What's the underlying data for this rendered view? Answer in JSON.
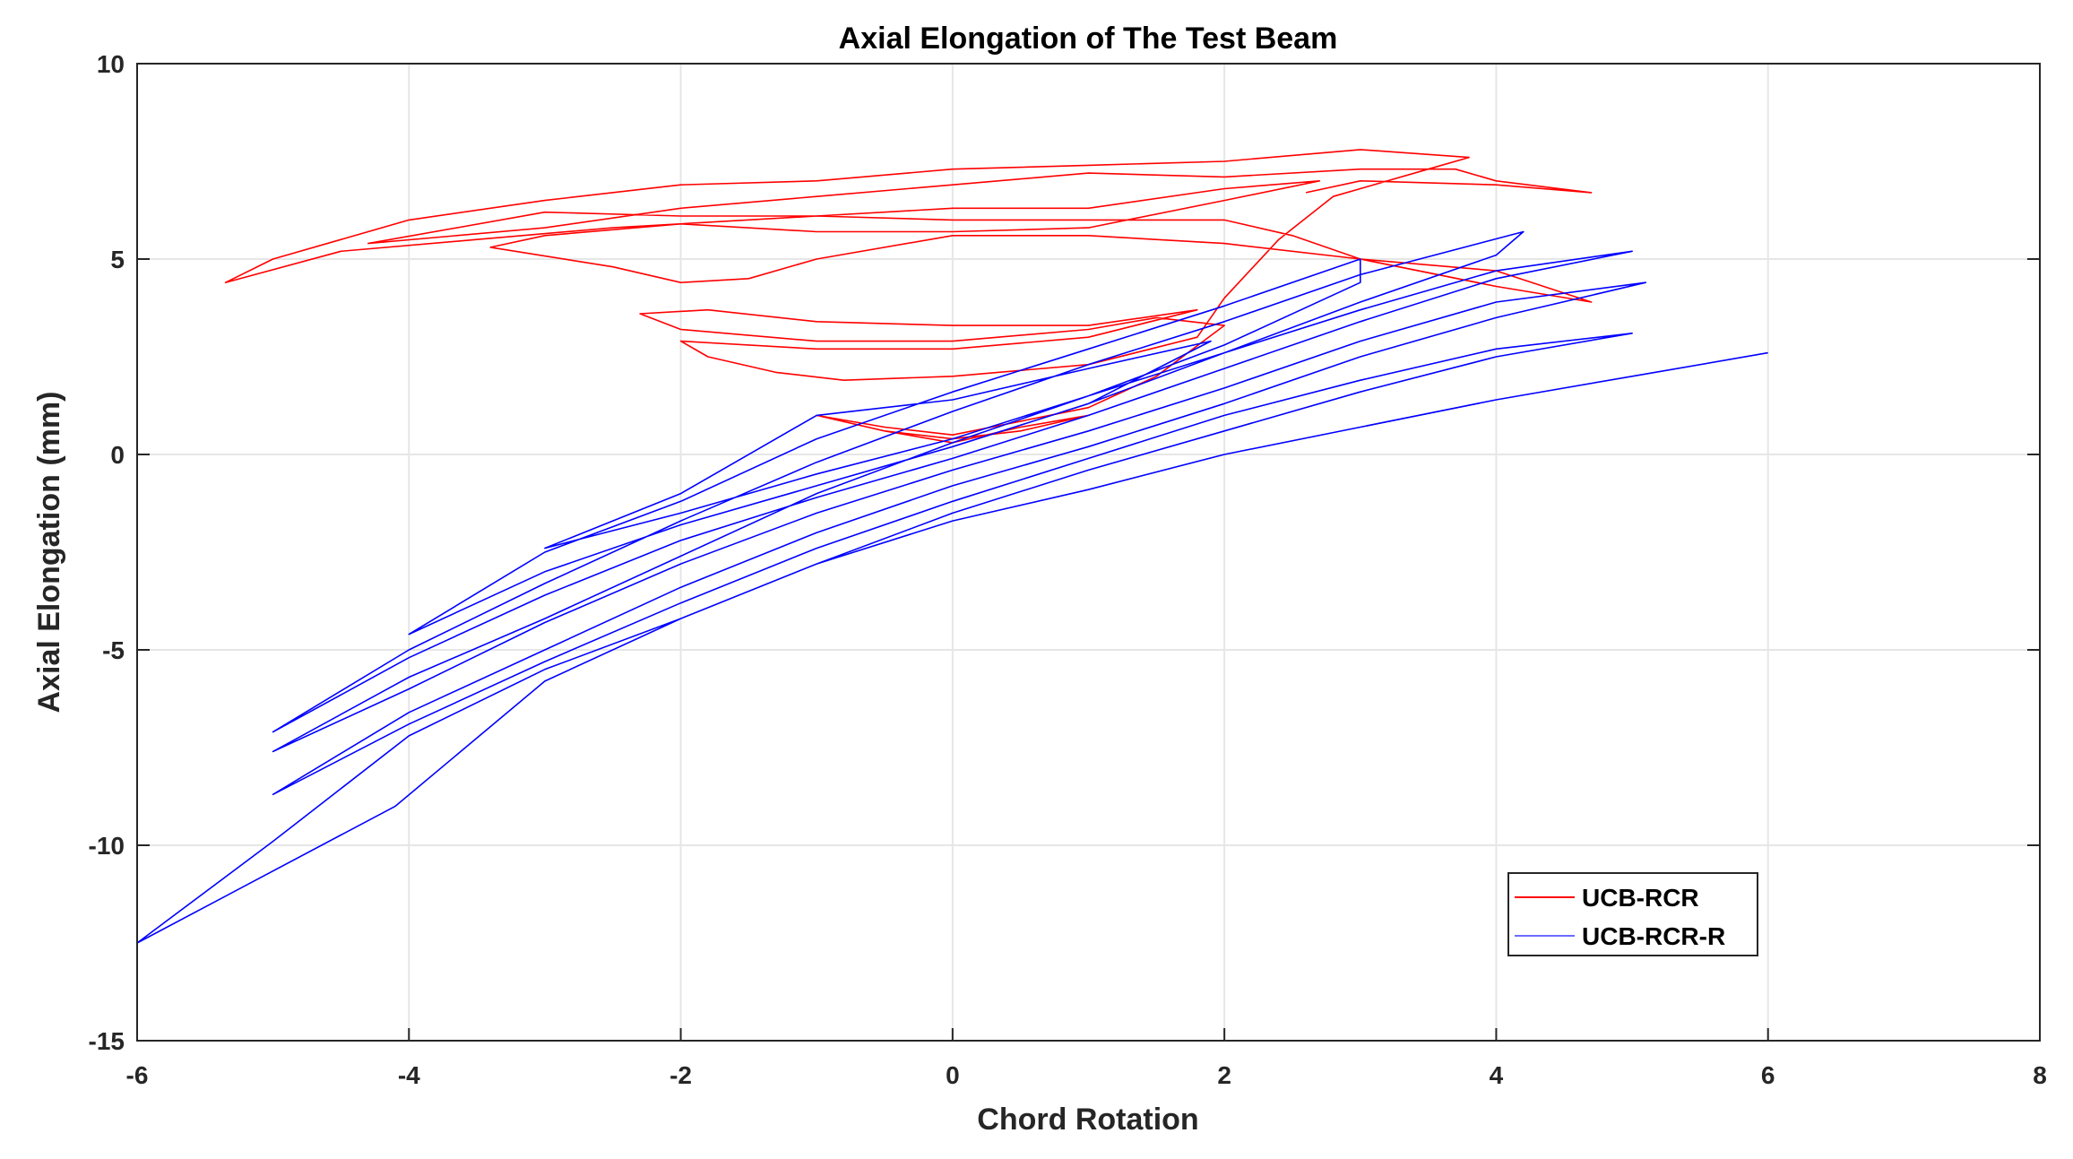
{
  "chart_data": {
    "type": "line",
    "title": "Axial Elongation of The Test Beam",
    "xlabel": "Chord Rotation",
    "ylabel": "Axial Elongation (mm)",
    "xlim": [
      -6,
      8
    ],
    "ylim": [
      -15,
      10
    ],
    "xticks": [
      -6,
      -4,
      -2,
      0,
      2,
      4,
      6,
      8
    ],
    "yticks": [
      -15,
      -10,
      -5,
      0,
      5,
      10
    ],
    "grid": true,
    "legend": "bottom-right",
    "series": [
      {
        "name": "UCB-RCR",
        "color": "#ff0000",
        "points": [
          [
            -1,
            1.0
          ],
          [
            -0.5,
            0.6
          ],
          [
            0,
            0.4
          ],
          [
            0.5,
            0.6
          ],
          [
            1,
            1.0
          ],
          [
            0.5,
            0.7
          ],
          [
            0,
            0.3
          ],
          [
            -0.5,
            0.6
          ],
          [
            -1,
            1.0
          ],
          [
            -0.5,
            0.7
          ],
          [
            0,
            0.5
          ],
          [
            1,
            1.2
          ],
          [
            1.5,
            2.0
          ],
          [
            2,
            3.3
          ],
          [
            1.5,
            3.5
          ],
          [
            1,
            3.2
          ],
          [
            0,
            2.9
          ],
          [
            -1,
            2.9
          ],
          [
            -2,
            3.2
          ],
          [
            -2.3,
            3.6
          ],
          [
            -1.8,
            3.7
          ],
          [
            -1,
            3.4
          ],
          [
            0,
            3.3
          ],
          [
            1,
            3.3
          ],
          [
            1.8,
            3.7
          ],
          [
            1,
            3.0
          ],
          [
            0,
            2.7
          ],
          [
            -1,
            2.7
          ],
          [
            -2,
            2.9
          ],
          [
            -1.8,
            2.5
          ],
          [
            -1.3,
            2.1
          ],
          [
            -0.8,
            1.9
          ],
          [
            0,
            2.0
          ],
          [
            1,
            2.3
          ],
          [
            1.8,
            3.0
          ],
          [
            2,
            4.0
          ],
          [
            2.4,
            5.5
          ],
          [
            2.8,
            6.6
          ],
          [
            3.5,
            7.3
          ],
          [
            3.8,
            7.6
          ],
          [
            3,
            7.8
          ],
          [
            2,
            7.5
          ],
          [
            1,
            7.4
          ],
          [
            0,
            7.3
          ],
          [
            -1,
            7.0
          ],
          [
            -2,
            6.9
          ],
          [
            -3,
            6.5
          ],
          [
            -4,
            6.0
          ],
          [
            -5,
            5.0
          ],
          [
            -5.35,
            4.4
          ],
          [
            -4.5,
            5.2
          ],
          [
            -3.5,
            5.5
          ],
          [
            -2.5,
            5.8
          ],
          [
            -1,
            6.1
          ],
          [
            0,
            6.3
          ],
          [
            1,
            6.3
          ],
          [
            2,
            6.8
          ],
          [
            2.7,
            7.0
          ],
          [
            2,
            6.5
          ],
          [
            1,
            5.8
          ],
          [
            0,
            5.7
          ],
          [
            -1,
            5.7
          ],
          [
            -2,
            5.9
          ],
          [
            -3,
            5.6
          ],
          [
            -3.4,
            5.3
          ],
          [
            -2.5,
            4.8
          ],
          [
            -2,
            4.4
          ],
          [
            -1.5,
            4.5
          ],
          [
            -1,
            5.0
          ],
          [
            0,
            5.6
          ],
          [
            1,
            5.6
          ],
          [
            2,
            5.4
          ],
          [
            3,
            5.0
          ],
          [
            4,
            4.7
          ],
          [
            4.7,
            3.9
          ],
          [
            4,
            4.3
          ],
          [
            3,
            5.0
          ],
          [
            2.5,
            5.6
          ],
          [
            2,
            6.0
          ],
          [
            1,
            6.0
          ],
          [
            0,
            6.0
          ],
          [
            -1,
            6.1
          ],
          [
            -2,
            6.1
          ],
          [
            -3,
            6.2
          ],
          [
            -4.3,
            5.4
          ],
          [
            -3,
            5.8
          ],
          [
            -2,
            6.3
          ],
          [
            -1,
            6.6
          ],
          [
            0,
            6.9
          ],
          [
            1,
            7.2
          ],
          [
            2,
            7.1
          ],
          [
            3,
            7.3
          ],
          [
            3.7,
            7.3
          ],
          [
            4,
            7.0
          ],
          [
            4.7,
            6.7
          ],
          [
            4,
            6.9
          ],
          [
            3,
            7.0
          ],
          [
            2.6,
            6.7
          ]
        ]
      },
      {
        "name": "UCB-RCR-R",
        "color": "#0000ff",
        "points": [
          [
            0,
            0.2
          ],
          [
            1,
            1.3
          ],
          [
            1.9,
            2.9
          ],
          [
            1,
            2.2
          ],
          [
            0,
            1.4
          ],
          [
            -1,
            1.0
          ],
          [
            -2,
            -1.0
          ],
          [
            -3,
            -2.4
          ],
          [
            -2,
            -1.5
          ],
          [
            -1,
            -0.5
          ],
          [
            0,
            0.4
          ],
          [
            1,
            1.5
          ],
          [
            2,
            2.8
          ],
          [
            3,
            4.4
          ],
          [
            3,
            5.0
          ],
          [
            2,
            3.8
          ],
          [
            1,
            2.7
          ],
          [
            0,
            1.6
          ],
          [
            -1,
            0.4
          ],
          [
            -2,
            -1.2
          ],
          [
            -3,
            -2.5
          ],
          [
            -4,
            -4.6
          ],
          [
            -3,
            -3.0
          ],
          [
            -2,
            -1.8
          ],
          [
            -1,
            -0.8
          ],
          [
            0,
            0.2
          ],
          [
            1,
            1.3
          ],
          [
            2,
            2.6
          ],
          [
            3,
            3.9
          ],
          [
            4,
            5.1
          ],
          [
            4.2,
            5.7
          ],
          [
            3,
            4.6
          ],
          [
            2,
            3.4
          ],
          [
            1,
            2.3
          ],
          [
            0,
            1.1
          ],
          [
            -1,
            -0.2
          ],
          [
            -2,
            -1.7
          ],
          [
            -3,
            -3.3
          ],
          [
            -4,
            -5.0
          ],
          [
            -5,
            -7.1
          ],
          [
            -4,
            -5.2
          ],
          [
            -3,
            -3.6
          ],
          [
            -2,
            -2.2
          ],
          [
            -1,
            -1.1
          ],
          [
            0,
            -0.1
          ],
          [
            1,
            1.0
          ],
          [
            2,
            2.2
          ],
          [
            3,
            3.4
          ],
          [
            4,
            4.5
          ],
          [
            5,
            5.2
          ],
          [
            4,
            4.7
          ],
          [
            3,
            3.7
          ],
          [
            2,
            2.6
          ],
          [
            1,
            1.5
          ],
          [
            0,
            0.3
          ],
          [
            -1,
            -1.0
          ],
          [
            -2,
            -2.6
          ],
          [
            -3,
            -4.2
          ],
          [
            -4,
            -5.7
          ],
          [
            -5,
            -7.6
          ],
          [
            -4,
            -6.0
          ],
          [
            -3,
            -4.3
          ],
          [
            -2,
            -2.8
          ],
          [
            -1,
            -1.5
          ],
          [
            0,
            -0.4
          ],
          [
            1,
            0.6
          ],
          [
            2,
            1.7
          ],
          [
            3,
            2.9
          ],
          [
            4,
            3.9
          ],
          [
            5.1,
            4.4
          ],
          [
            4,
            3.5
          ],
          [
            3,
            2.5
          ],
          [
            2,
            1.3
          ],
          [
            1,
            0.2
          ],
          [
            0,
            -0.8
          ],
          [
            -1,
            -2.0
          ],
          [
            -2,
            -3.4
          ],
          [
            -3,
            -5.0
          ],
          [
            -4,
            -6.6
          ],
          [
            -5,
            -8.7
          ],
          [
            -4,
            -6.9
          ],
          [
            -3,
            -5.3
          ],
          [
            -2,
            -3.8
          ],
          [
            -1,
            -2.4
          ],
          [
            0,
            -1.2
          ],
          [
            1,
            -0.1
          ],
          [
            2,
            1.0
          ],
          [
            3,
            1.9
          ],
          [
            4,
            2.7
          ],
          [
            5,
            3.1
          ],
          [
            4,
            2.5
          ],
          [
            3,
            1.6
          ],
          [
            2,
            0.6
          ],
          [
            1,
            -0.4
          ],
          [
            0,
            -1.5
          ],
          [
            -1,
            -2.8
          ],
          [
            -2,
            -4.2
          ],
          [
            -3,
            -5.8
          ],
          [
            -4.1,
            -9.0
          ],
          [
            -6,
            -12.5
          ],
          [
            -5,
            -9.9
          ],
          [
            -4,
            -7.2
          ],
          [
            -3,
            -5.5
          ],
          [
            -2,
            -4.2
          ],
          [
            -1,
            -2.8
          ],
          [
            0,
            -1.7
          ],
          [
            1,
            -0.9
          ],
          [
            2,
            0.0
          ],
          [
            3,
            0.7
          ],
          [
            4,
            1.4
          ],
          [
            5,
            2.0
          ],
          [
            6,
            2.6
          ]
        ]
      }
    ]
  }
}
